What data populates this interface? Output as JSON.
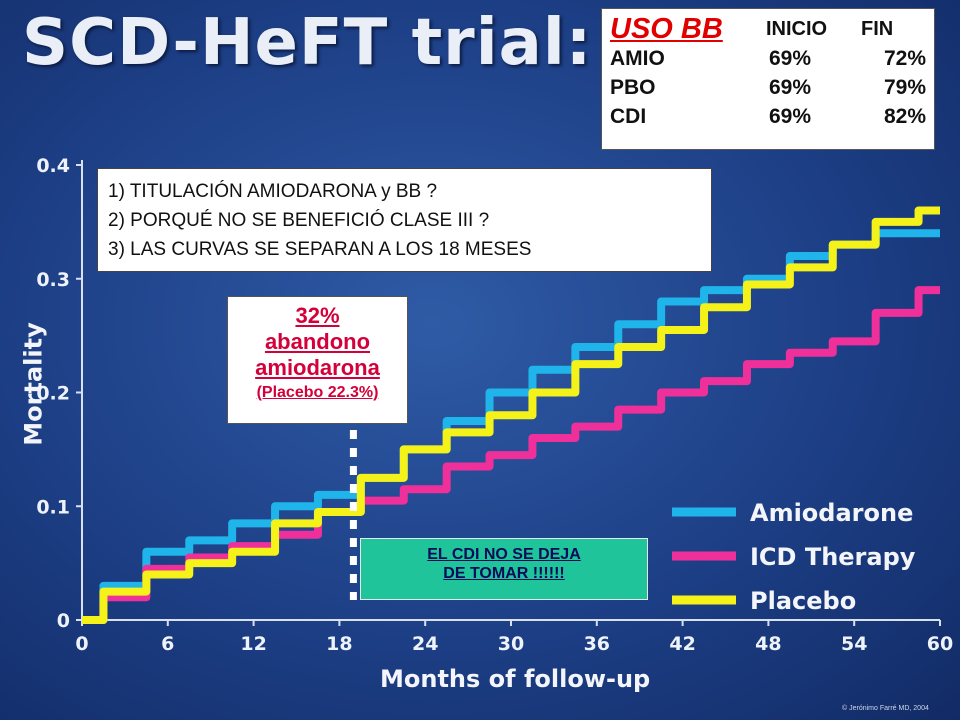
{
  "slide": {
    "title": "SCD-HeFT trial: surv",
    "copyright": "© Jerónimo Farré MD, 2004"
  },
  "bb_table": {
    "heading": "USO BB",
    "col_inicio": "INICIO",
    "col_fin": "FIN",
    "rows": [
      {
        "label": "AMIO",
        "inicio": "69%",
        "fin": "72%"
      },
      {
        "label": "PBO",
        "inicio": "69%",
        "fin": "79%"
      },
      {
        "label": "CDI",
        "inicio": "69%",
        "fin": "82%"
      }
    ]
  },
  "questions": [
    "1) TITULACIÓN AMIODARONA y BB ?",
    "2) PORQUÉ NO SE BENEFICIÓ CLASE III ?",
    "3) LAS CURVAS SE SEPARAN A LOS 18 MESES"
  ],
  "abandono_note": {
    "line1": "32%",
    "line2": "abandono",
    "line3": "amiodarona",
    "line4": "(Placebo 22.3%)"
  },
  "cdi_note": {
    "line1": "EL CDI NO SE DEJA",
    "line2": "DE TOMAR !!!!!!"
  },
  "chart_data": {
    "type": "line",
    "title": "",
    "xlabel": "Months of follow-up",
    "ylabel": "Mortality",
    "xlim": [
      0,
      60
    ],
    "ylim": [
      0,
      0.4
    ],
    "xticks": [
      "0",
      "6",
      "12",
      "18",
      "24",
      "30",
      "36",
      "42",
      "48",
      "54",
      "60"
    ],
    "yticks": [
      "0",
      "0.1",
      "0.2",
      "0.3",
      "0.4"
    ],
    "grid": false,
    "legend_position": "bottom-right",
    "annotation_marker_x": 18,
    "series": [
      {
        "name": "Amiodarone",
        "color": "#1fb4ea",
        "x": [
          0,
          3,
          6,
          9,
          12,
          15,
          18,
          21,
          24,
          27,
          30,
          33,
          36,
          39,
          42,
          45,
          48,
          51,
          54,
          57,
          60
        ],
        "y": [
          0,
          0.03,
          0.06,
          0.07,
          0.085,
          0.1,
          0.11,
          0.125,
          0.15,
          0.175,
          0.2,
          0.22,
          0.24,
          0.26,
          0.28,
          0.29,
          0.3,
          0.32,
          0.33,
          0.34,
          0.34
        ]
      },
      {
        "name": "ICD Therapy",
        "color": "#f0309a",
        "x": [
          0,
          3,
          6,
          9,
          12,
          15,
          18,
          21,
          24,
          27,
          30,
          33,
          36,
          39,
          42,
          45,
          48,
          51,
          54,
          57,
          60
        ],
        "y": [
          0,
          0.02,
          0.045,
          0.055,
          0.065,
          0.075,
          0.095,
          0.105,
          0.115,
          0.135,
          0.145,
          0.16,
          0.17,
          0.185,
          0.2,
          0.21,
          0.225,
          0.235,
          0.245,
          0.27,
          0.29
        ]
      },
      {
        "name": "Placebo",
        "color": "#f4f219",
        "x": [
          0,
          3,
          6,
          9,
          12,
          15,
          18,
          21,
          24,
          27,
          30,
          33,
          36,
          39,
          42,
          45,
          48,
          51,
          54,
          57,
          60
        ],
        "y": [
          0,
          0.025,
          0.04,
          0.05,
          0.06,
          0.085,
          0.095,
          0.125,
          0.15,
          0.165,
          0.18,
          0.2,
          0.225,
          0.24,
          0.255,
          0.275,
          0.295,
          0.31,
          0.33,
          0.35,
          0.36
        ]
      }
    ]
  }
}
